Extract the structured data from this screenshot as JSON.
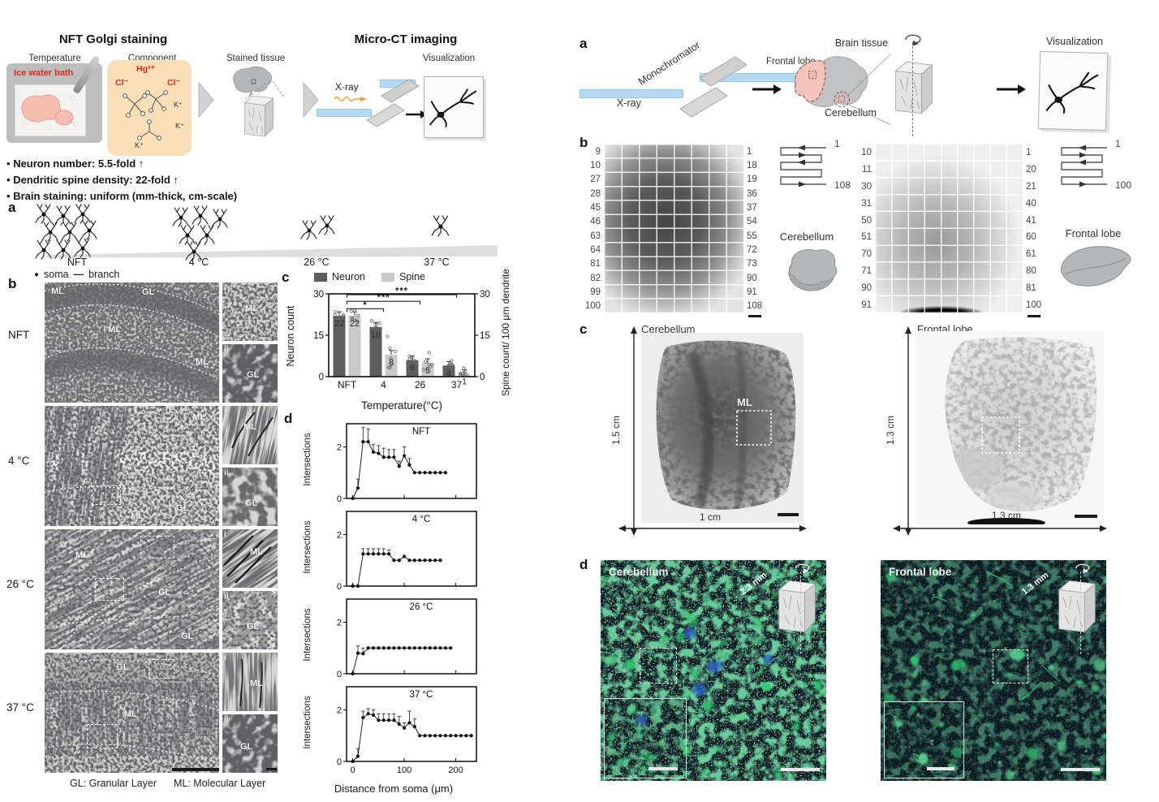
{
  "left": {
    "header": {
      "title_staining": "NFT Golgi staining",
      "title_ct": "Micro-CT imaging",
      "step_temperature": "Temperature",
      "step_component": "Component",
      "step_stained": "Stained tissue",
      "step_visualization": "Visualization",
      "ice_water_bath": "Ice water bath",
      "xray": "X-ray",
      "chem_hg": "Hg²⁺",
      "chem_cl_left": "Cl⁻",
      "chem_cl_right": "Cl⁻",
      "chem_k1": "K⁺",
      "chem_k2": "K⁺",
      "chem_k3": "K⁺"
    },
    "bullets": [
      {
        "bullet": "•",
        "text": "Neuron number: 5.5-fold",
        "arrow": "↑"
      },
      {
        "bullet": "•",
        "text": "Dendritic spine density: 22-fold",
        "arrow": "↑"
      },
      {
        "bullet": "•",
        "text": "Brain staining: uniform (mm-thick, cm-scale)",
        "arrow": ""
      }
    ],
    "panel_a": {
      "label": "a",
      "temps": [
        "NFT",
        "4 °C",
        "26 °C",
        "37 °C"
      ],
      "legend_soma_dot": "●",
      "legend_soma": "soma",
      "legend_branch_dash": "—",
      "legend_branch": "branch"
    },
    "panel_b": {
      "label": "b",
      "rows": [
        {
          "temp": "NFT",
          "ml": "ML",
          "gl": "GL",
          "tag_i": "i",
          "tag_ii": "ii"
        },
        {
          "temp": "4 °C",
          "ml": "ML",
          "gl": "GL",
          "tag_i": "i",
          "tag_ii": "ii"
        },
        {
          "temp": "26 °C",
          "ml": "ML",
          "gl": "GL",
          "tag_i": "i",
          "tag_ii": "ii"
        },
        {
          "temp": "37 °C",
          "ml": "ML",
          "gl": "GL",
          "tag_i": "i",
          "tag_ii": "ii"
        }
      ],
      "footer_gl": "GL: Granular Layer",
      "footer_ml": "ML: Molecular Layer"
    },
    "panel_c_label": "c",
    "panel_d_label": "d"
  },
  "right": {
    "panel_a": {
      "label": "a",
      "monochromator": "Monochromator",
      "xray": "X-ray",
      "brain_tissue": "Brain tissue",
      "frontal_lobe": "Frontal lobe",
      "cerebellum": "Cerebellum",
      "visualization": "Visualization"
    },
    "panel_b": {
      "label": "b",
      "cerebellum": {
        "left_numbers": [
          "9",
          "10",
          "27",
          "28",
          "45",
          "46",
          "63",
          "64",
          "81",
          "82",
          "99",
          "100"
        ],
        "right_numbers": [
          "1",
          "18",
          "19",
          "36",
          "37",
          "54",
          "55",
          "72",
          "73",
          "90",
          "91",
          "108"
        ],
        "serp_start": "1",
        "serp_end": "108",
        "organ": "Cerebellum"
      },
      "frontal": {
        "left_numbers": [
          "10",
          "11",
          "30",
          "31",
          "50",
          "51",
          "70",
          "71",
          "90",
          "91"
        ],
        "right_numbers": [
          "1",
          "20",
          "21",
          "40",
          "41",
          "60",
          "61",
          "80",
          "81",
          "100"
        ],
        "serp_start": "1",
        "serp_end": "100",
        "organ": "Frontal lobe"
      }
    },
    "panel_c": {
      "label": "c",
      "cerebellum": {
        "title": "Cerebellum",
        "height": "1.5 cm",
        "width": "1 cm",
        "roi": "ML"
      },
      "frontal": {
        "title": "Frontal lobe",
        "height": "1.3 cm",
        "width": "1.3 cm"
      }
    },
    "panel_d": {
      "label": "d",
      "cerebellum": {
        "title": "Cerebellum",
        "cube": "2.3 mm"
      },
      "frontal": {
        "title": "Frontal lobe",
        "cube": "1.3 mm"
      }
    }
  },
  "chart_data": [
    {
      "type": "bar",
      "categories": [
        "NFT",
        "4",
        "26",
        "37"
      ],
      "series": [
        {
          "name": "Neuron",
          "color": "#5e5e5e",
          "values": [
            22,
            18,
            6,
            4
          ]
        },
        {
          "name": "Spine",
          "color": "#c9c9c9",
          "values": [
            22,
            8,
            5,
            1
          ]
        }
      ],
      "bar_labels": [
        [
          "22",
          "18",
          "6",
          "4"
        ],
        [
          "22",
          "8",
          "5",
          "1"
        ]
      ],
      "ylabel_left": "Neuron count",
      "ylabel_right": "Spine count/ 100 μm dendrite",
      "xlabel": "Temperature(°C)",
      "ylim": [
        0,
        30
      ],
      "yticks": [
        0,
        15,
        30
      ],
      "significance": [
        {
          "from": 0,
          "to": 1,
          "label": "*"
        },
        {
          "from": 0,
          "to": 2,
          "label": "***"
        },
        {
          "from": 0,
          "to": 3,
          "label": "***"
        }
      ],
      "legend_position": "top"
    },
    {
      "type": "line",
      "title": "NFT",
      "ylabel": "Intersections",
      "x": [
        0,
        10,
        20,
        30,
        40,
        50,
        60,
        70,
        80,
        90,
        100,
        110,
        120,
        130,
        140,
        150,
        160,
        170,
        180
      ],
      "y": [
        0,
        0.4,
        2.2,
        2.2,
        1.8,
        1.75,
        1.6,
        1.6,
        1.6,
        1.25,
        1.65,
        1.3,
        1.0,
        1.0,
        1.0,
        1.0,
        1.0,
        1.0,
        1.0
      ],
      "yerr": [
        0,
        0.35,
        0.55,
        0.5,
        0.3,
        0.3,
        0.35,
        0.3,
        0.3,
        0.2,
        0.35,
        0.25,
        0,
        0,
        0,
        0,
        0,
        0,
        0
      ],
      "yticks": [
        0,
        2
      ],
      "ylim": [
        0,
        2.9
      ],
      "xticks": [
        0,
        100,
        200
      ],
      "xlabel": ""
    },
    {
      "type": "line",
      "title": "4 °C",
      "ylabel": "Intersections",
      "x": [
        0,
        10,
        20,
        30,
        40,
        50,
        60,
        70,
        80,
        90,
        100,
        110,
        120,
        130,
        140,
        150,
        160,
        170
      ],
      "y": [
        0,
        0,
        1.25,
        1.25,
        1.25,
        1.25,
        1.25,
        1.25,
        1.0,
        1.0,
        1.15,
        1.0,
        1.0,
        1.0,
        1.0,
        1.0,
        1.0,
        1.0
      ],
      "yerr": [
        0,
        0,
        0.2,
        0.2,
        0.2,
        0.2,
        0.2,
        0.15,
        0,
        0,
        0,
        0,
        0,
        0,
        0,
        0,
        0,
        0
      ],
      "yticks": [
        0,
        2
      ],
      "ylim": [
        0,
        2.9
      ],
      "xticks": [
        0,
        100,
        200
      ],
      "xlabel": ""
    },
    {
      "type": "line",
      "title": "26 °C",
      "ylabel": "Intersections",
      "x": [
        0,
        10,
        20,
        30,
        40,
        50,
        60,
        70,
        80,
        90,
        100,
        110,
        120,
        130,
        140,
        150,
        160,
        170,
        180,
        190
      ],
      "y": [
        0,
        0.8,
        0.78,
        1.0,
        1.0,
        1.0,
        1.0,
        1.0,
        1.0,
        1.0,
        1.0,
        1.0,
        1.0,
        1.0,
        1.0,
        1.0,
        1.0,
        1.0,
        1.0,
        1.0
      ],
      "yerr": [
        0,
        0.28,
        0.22,
        0,
        0,
        0,
        0,
        0,
        0,
        0,
        0,
        0,
        0,
        0,
        0,
        0,
        0,
        0,
        0,
        0
      ],
      "yticks": [
        0,
        2
      ],
      "ylim": [
        0,
        2.9
      ],
      "xticks": [
        0,
        100,
        200
      ],
      "xlabel": ""
    },
    {
      "type": "line",
      "title": "37 °C",
      "ylabel": "Intersections",
      "x": [
        0,
        10,
        20,
        30,
        40,
        50,
        60,
        70,
        80,
        90,
        100,
        110,
        120,
        130,
        140,
        150,
        160,
        170,
        180,
        190,
        200,
        210,
        220,
        230
      ],
      "y": [
        0,
        0.2,
        1.7,
        1.85,
        1.8,
        1.6,
        1.6,
        1.6,
        1.6,
        1.45,
        1.3,
        1.5,
        1.35,
        1.0,
        1.0,
        1.0,
        1.0,
        1.0,
        1.0,
        1.0,
        1.0,
        1.0,
        1.0,
        1.0
      ],
      "yerr": [
        0,
        0.3,
        0.25,
        0.2,
        0.2,
        0.25,
        0.25,
        0.25,
        0.25,
        0.3,
        0.2,
        0.45,
        0.3,
        0,
        0,
        0,
        0,
        0,
        0,
        0,
        0,
        0,
        0,
        0
      ],
      "yticks": [
        0,
        2
      ],
      "ylim": [
        0,
        2.9
      ],
      "xticks": [
        0,
        100,
        200
      ],
      "xlabel": "Distance from soma (μm)"
    }
  ]
}
